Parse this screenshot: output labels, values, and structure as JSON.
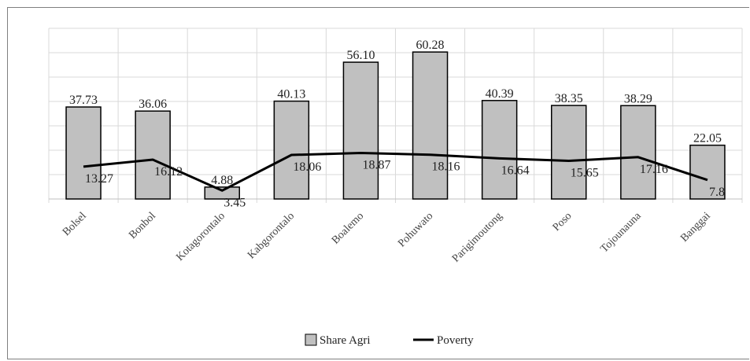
{
  "chart_data": {
    "type": "bar",
    "categories": [
      "Bolsel",
      "Bonbol",
      "Kotagorontalo",
      "Kabgorontalo",
      "Boalemo",
      "Pohuwato",
      "Parigimoutong",
      "Poso",
      "Tojounauna",
      "Banggai"
    ],
    "series": [
      {
        "name": "Share Agri",
        "type": "bar",
        "values": [
          37.73,
          36.06,
          4.88,
          40.13,
          56.1,
          60.28,
          40.39,
          38.35,
          38.29,
          22.05
        ],
        "labels": [
          "37.73",
          "36.06",
          "4.88",
          "40.13",
          "56.10",
          "60.28",
          "40.39",
          "38.35",
          "38.29",
          "22.05"
        ]
      },
      {
        "name": "Poverty",
        "type": "line",
        "values": [
          13.27,
          16.12,
          3.45,
          18.06,
          18.87,
          18.16,
          16.64,
          15.65,
          17.16,
          7.8
        ],
        "labels": [
          "13.27",
          "16.12",
          "3.45",
          "18.06",
          "18.87",
          "18.16",
          "16.64",
          "15.65",
          "17.16",
          "7.8"
        ]
      }
    ],
    "ylim": [
      0,
      70
    ],
    "grid": true,
    "legend": "bottom",
    "colors": {
      "bar_fill": "#c0c0c0",
      "bar_stroke": "#000000",
      "line": "#000000",
      "grid": "#d9d9d9"
    }
  }
}
